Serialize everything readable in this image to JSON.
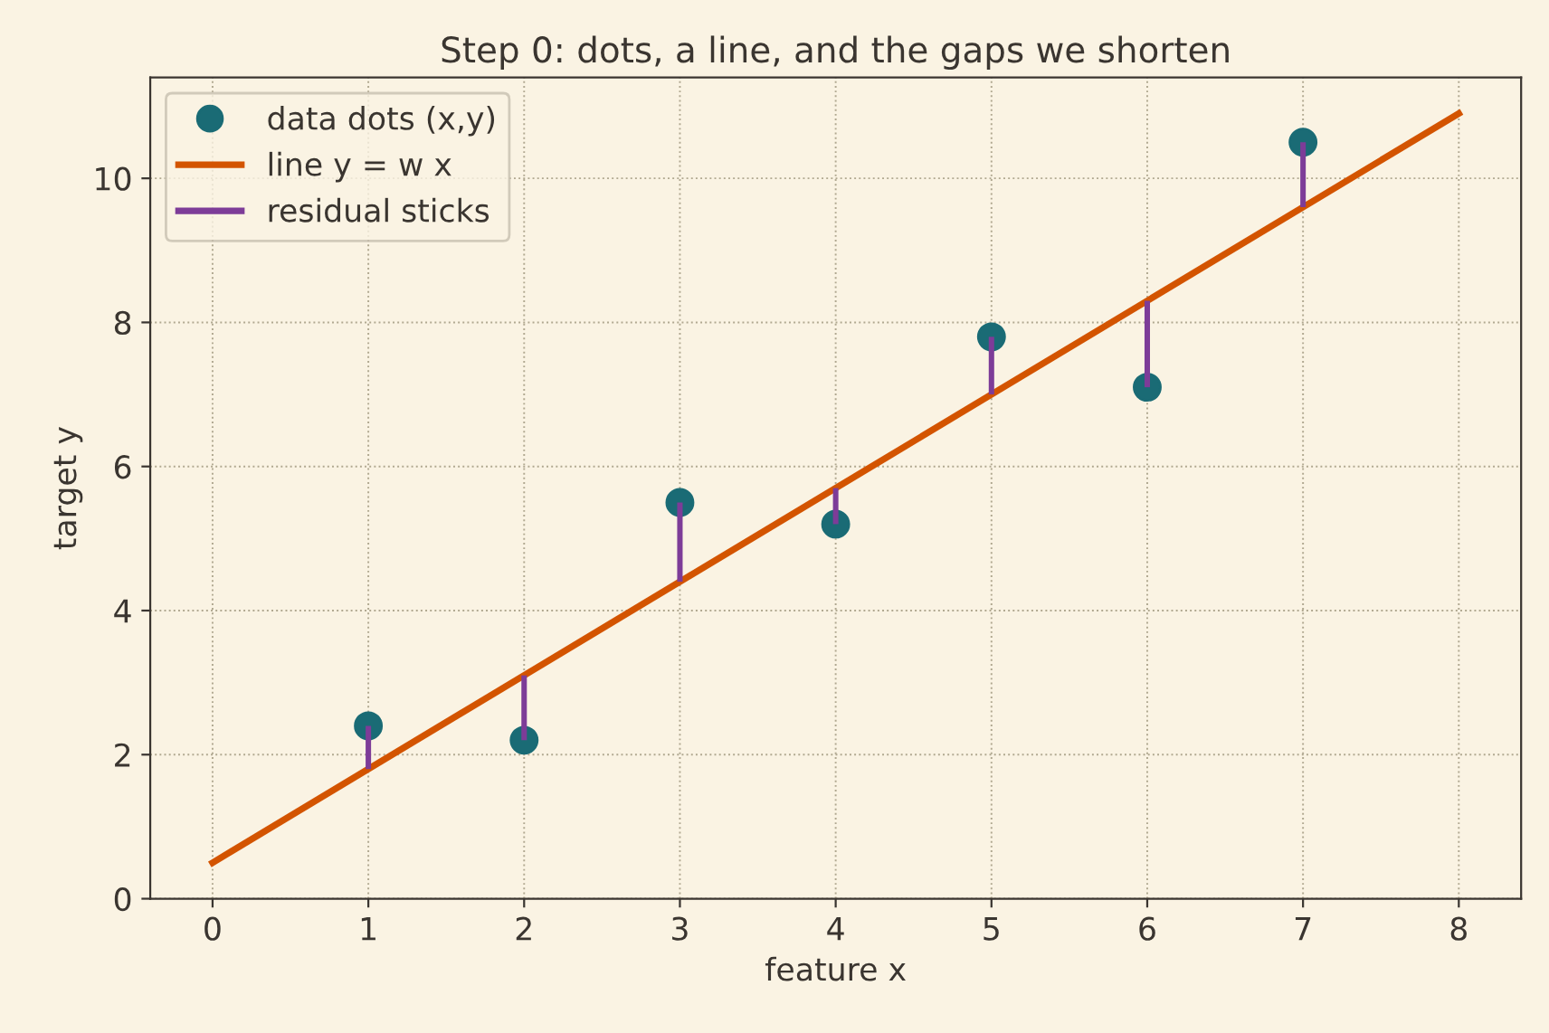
{
  "chart_data": {
    "type": "scatter",
    "title": "Step 0: dots, a line, and the gaps we shorten",
    "xlabel": "feature x",
    "ylabel": "target y",
    "series": [
      {
        "name": "data dots (x,y)",
        "marker": "circle",
        "color": "#1a6b75",
        "x": [
          1,
          2,
          3,
          4,
          5,
          6,
          7
        ],
        "values": [
          2.4,
          2.2,
          5.5,
          5.2,
          7.8,
          7.1,
          10.5
        ]
      },
      {
        "name": "line y = w x",
        "type": "line",
        "color": "#d35400",
        "x": [
          0,
          8
        ],
        "values": [
          0.5,
          10.9
        ]
      },
      {
        "name": "residual sticks",
        "type": "bar",
        "color": "#7d3c98",
        "x": [
          1,
          2,
          3,
          4,
          5,
          6,
          7
        ],
        "base": [
          1.8,
          3.1,
          4.4,
          5.7,
          7.0,
          8.3,
          9.6
        ],
        "values": [
          0.6,
          -0.9,
          1.1,
          -0.5,
          0.8,
          -1.2,
          0.9
        ]
      }
    ],
    "xlim": [
      -0.4,
      8.4
    ],
    "ylim": [
      0,
      11.4
    ],
    "xticks": [
      0,
      1,
      2,
      3,
      4,
      5,
      6,
      7,
      8
    ],
    "yticks": [
      0,
      2,
      4,
      6,
      8,
      10
    ],
    "grid": true,
    "legend": "top left",
    "line_style": "solid"
  }
}
